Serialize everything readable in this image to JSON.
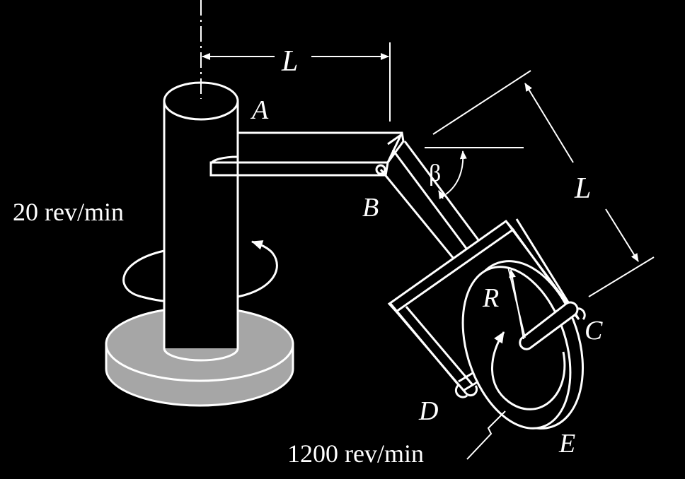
{
  "diagram": {
    "labels": {
      "length_top": "L",
      "length_side": "L",
      "point_a": "A",
      "point_b": "B",
      "point_c": "C",
      "point_d": "D",
      "point_e": "E",
      "radius": "R",
      "angle": "β",
      "speed_shaft": "20 rev/min",
      "speed_disk": "1200 rev/min"
    },
    "colors": {
      "background": "#000000",
      "line": "#ffffff",
      "base_fill": "#a6a6a6"
    }
  }
}
